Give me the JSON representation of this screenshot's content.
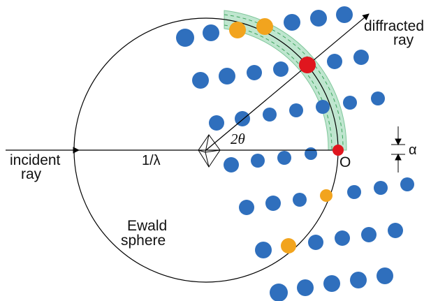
{
  "labels": {
    "incident_line1": "incident",
    "incident_line2": "ray",
    "inv_lambda": "1/λ",
    "two_theta": "2θ",
    "origin": "O",
    "alpha": "α",
    "diffracted_line1": "diffracted",
    "diffracted_line2": "ray",
    "ewald_line1": "Ewald",
    "ewald_line2": "sphere"
  },
  "colors": {
    "lattice_point": "#2f6fbd",
    "on_sphere_point": "#f2a41e",
    "reflecting_point": "#e0161e",
    "shell_fill": "#bfe6cf",
    "shell_dash": "#3aa35a",
    "line": "#000000"
  }
}
